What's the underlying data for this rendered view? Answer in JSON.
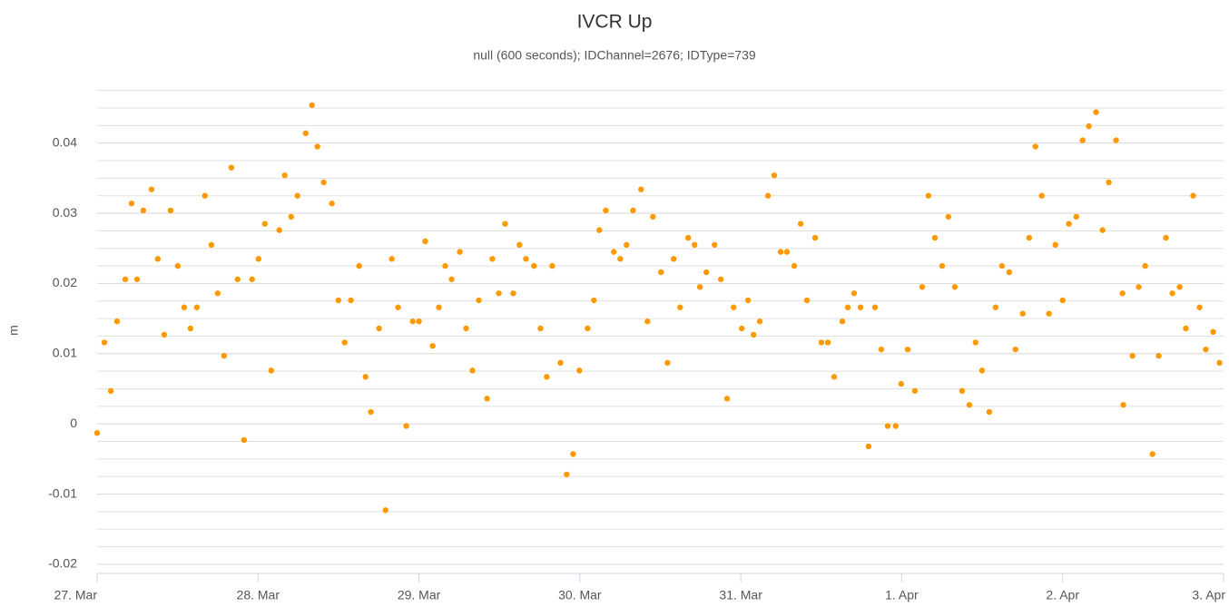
{
  "chart_data": {
    "type": "scatter",
    "title": "IVCR Up",
    "subtitle": "null (600 seconds); IDChannel=2676; IDType=739",
    "y_label": "m",
    "color": "#ff9900",
    "grid": true,
    "xlim": [
      0,
      7
    ],
    "xticks": [
      {
        "value": 0,
        "label": "27. Mar"
      },
      {
        "value": 1,
        "label": "28. Mar"
      },
      {
        "value": 2,
        "label": "29. Mar"
      },
      {
        "value": 3,
        "label": "30. Mar"
      },
      {
        "value": 4,
        "label": "31. Mar"
      },
      {
        "value": 5,
        "label": "1. Apr"
      },
      {
        "value": 6,
        "label": "2. Apr"
      },
      {
        "value": 7,
        "label": "3. Apr"
      }
    ],
    "ylim": [
      -0.0213,
      0.0481
    ],
    "yticks": [
      -0.02,
      -0.01,
      0,
      0.01,
      0.02,
      0.03,
      0.04
    ],
    "minor_yticks": [
      -0.0175,
      -0.015,
      -0.0125,
      -0.0075,
      -0.005,
      -0.0025,
      0.0025,
      0.005,
      0.0075,
      0.0125,
      0.015,
      0.0175,
      0.0225,
      0.025,
      0.0275,
      0.0325,
      0.035,
      0.0375,
      0.0425,
      0.045,
      0.0475
    ],
    "x": [
      0,
      0.045,
      0.085,
      0.124,
      0.175,
      0.214,
      0.248,
      0.287,
      0.338,
      0.377,
      0.417,
      0.456,
      0.501,
      0.541,
      0.58,
      0.62,
      0.67,
      0.71,
      0.749,
      0.789,
      0.834,
      0.873,
      0.913,
      0.963,
      1.003,
      1.042,
      1.082,
      1.132,
      1.166,
      1.206,
      1.245,
      1.296,
      1.335,
      1.369,
      1.408,
      1.459,
      1.499,
      1.538,
      1.577,
      1.628,
      1.668,
      1.701,
      1.752,
      1.792,
      1.831,
      1.87,
      1.921,
      1.961,
      2.0,
      2.039,
      2.085,
      2.124,
      2.163,
      2.203,
      2.254,
      2.293,
      2.332,
      2.372,
      2.423,
      2.456,
      2.496,
      2.535,
      2.586,
      2.625,
      2.665,
      2.715,
      2.755,
      2.794,
      2.828,
      2.879,
      2.918,
      2.958,
      2.997,
      3.048,
      3.087,
      3.121,
      3.161,
      3.211,
      3.251,
      3.29,
      3.33,
      3.38,
      3.42,
      3.454,
      3.504,
      3.544,
      3.583,
      3.623,
      3.673,
      3.713,
      3.746,
      3.786,
      3.837,
      3.876,
      3.915,
      3.955,
      4.006,
      4.045,
      4.079,
      4.118,
      4.169,
      4.208,
      4.248,
      4.287,
      4.332,
      4.372,
      4.411,
      4.462,
      4.501,
      4.541,
      4.58,
      4.631,
      4.665,
      4.704,
      4.744,
      4.794,
      4.834,
      4.873,
      4.913,
      4.963,
      4.997,
      5.037,
      5.082,
      5.127,
      5.166,
      5.206,
      5.251,
      5.29,
      5.33,
      5.375,
      5.42,
      5.459,
      5.499,
      5.544,
      5.583,
      5.623,
      5.668,
      5.707,
      5.752,
      5.792,
      5.831,
      5.87,
      5.915,
      5.955,
      6.0,
      6.039,
      6.085,
      6.124,
      6.163,
      6.208,
      6.248,
      6.287,
      6.332,
      6.372,
      6.377,
      6.434,
      6.473,
      6.513,
      6.558,
      6.597,
      6.642,
      6.682,
      6.727,
      6.766,
      6.811,
      6.851,
      6.89,
      6.935,
      6.975
    ],
    "values": [
      -0.0013,
      0.0116,
      0.0047,
      0.0146,
      0.0206,
      0.0314,
      0.0206,
      0.0304,
      0.0334,
      0.0235,
      0.0127,
      0.0304,
      0.0225,
      0.0166,
      0.0136,
      0.0166,
      0.0325,
      0.0255,
      0.0186,
      0.0097,
      0.0365,
      0.0206,
      -0.0023,
      0.0206,
      0.0235,
      0.0285,
      0.0076,
      0.0276,
      0.0354,
      0.0295,
      0.0325,
      0.0414,
      0.0454,
      0.0395,
      0.0344,
      0.0314,
      0.0176,
      0.0116,
      0.0176,
      0.0225,
      0.0067,
      0.0017,
      0.0136,
      -0.0123,
      0.0235,
      0.0166,
      -0.0003,
      0.0146,
      0.0146,
      0.026,
      0.0111,
      0.0166,
      0.0225,
      0.0206,
      0.0245,
      0.0136,
      0.0076,
      0.0176,
      0.0036,
      0.0235,
      0.0186,
      0.0285,
      0.0186,
      0.0255,
      0.0235,
      0.0225,
      0.0136,
      0.0067,
      0.0225,
      0.0087,
      -0.0072,
      -0.0043,
      0.0076,
      0.0136,
      0.0176,
      0.0276,
      0.0304,
      0.0245,
      0.0235,
      0.0255,
      0.0304,
      0.0334,
      0.0146,
      0.0295,
      0.0216,
      0.0087,
      0.0235,
      0.0166,
      0.0265,
      0.0255,
      0.0195,
      0.0216,
      0.0255,
      0.0206,
      0.0036,
      0.0166,
      0.0136,
      0.0176,
      0.0127,
      0.0146,
      0.0325,
      0.0354,
      0.0245,
      0.0245,
      0.0225,
      0.0285,
      0.0176,
      0.0265,
      0.0116,
      0.0116,
      0.0067,
      0.0146,
      0.0166,
      0.0186,
      0.0166,
      -0.0032,
      0.0166,
      0.0106,
      -0.0003,
      -0.0003,
      0.0057,
      0.0106,
      0.0047,
      0.0195,
      0.0325,
      0.0265,
      0.0225,
      0.0295,
      0.0195,
      0.0047,
      0.0027,
      0.0116,
      0.0076,
      0.0017,
      0.0166,
      0.0225,
      0.0216,
      0.0106,
      0.0157,
      0.0265,
      0.0395,
      0.0325,
      0.0157,
      0.0255,
      0.0176,
      0.0285,
      0.0295,
      0.0404,
      0.0424,
      0.0444,
      0.0276,
      0.0344,
      0.0404,
      0.0186,
      0.0027,
      0.0097,
      0.0195,
      0.0225,
      -0.0043,
      0.0097,
      0.0265,
      0.0186,
      0.0195,
      0.0136,
      0.0325,
      0.0166,
      0.0106,
      0.0131,
      0.0087
    ]
  }
}
